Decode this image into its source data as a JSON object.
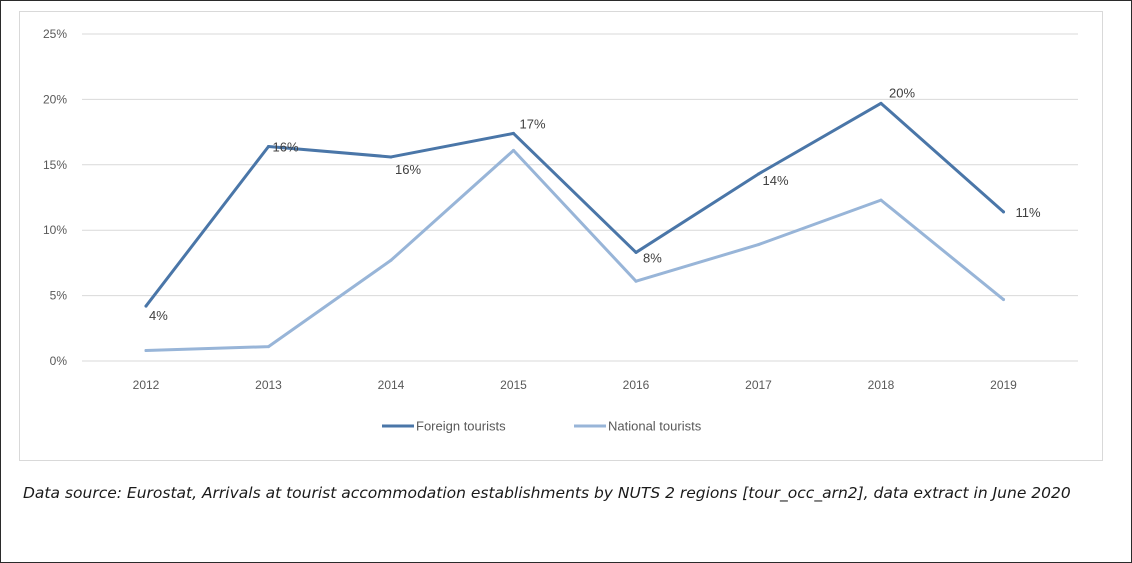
{
  "caption": "Data source: Eurostat, Arrivals at tourist accommodation establishments by NUTS 2 regions [tour_occ_arn2], data extract in June 2020",
  "chart_data": {
    "type": "line",
    "title": "",
    "xlabel": "",
    "ylabel": "",
    "categories": [
      "2012",
      "2013",
      "2014",
      "2015",
      "2016",
      "2017",
      "2018",
      "2019"
    ],
    "yticks": [
      "0%",
      "5%",
      "10%",
      "15%",
      "20%",
      "25%"
    ],
    "ylim": [
      0,
      25
    ],
    "grid": true,
    "legend_position": "bottom",
    "series": [
      {
        "name": "Foreign tourists",
        "color": "#4a76a8",
        "values": [
          4.2,
          16.4,
          15.6,
          17.4,
          8.3,
          14.3,
          19.7,
          11.4
        ],
        "labels": [
          "4%",
          "16%",
          "16%",
          "17%",
          "8%",
          "14%",
          "20%",
          "11%"
        ]
      },
      {
        "name": "National tourists",
        "color": "#98b5d8",
        "values": [
          0.8,
          1.1,
          7.7,
          16.1,
          6.1,
          8.9,
          12.3,
          4.7
        ],
        "labels": []
      }
    ]
  }
}
